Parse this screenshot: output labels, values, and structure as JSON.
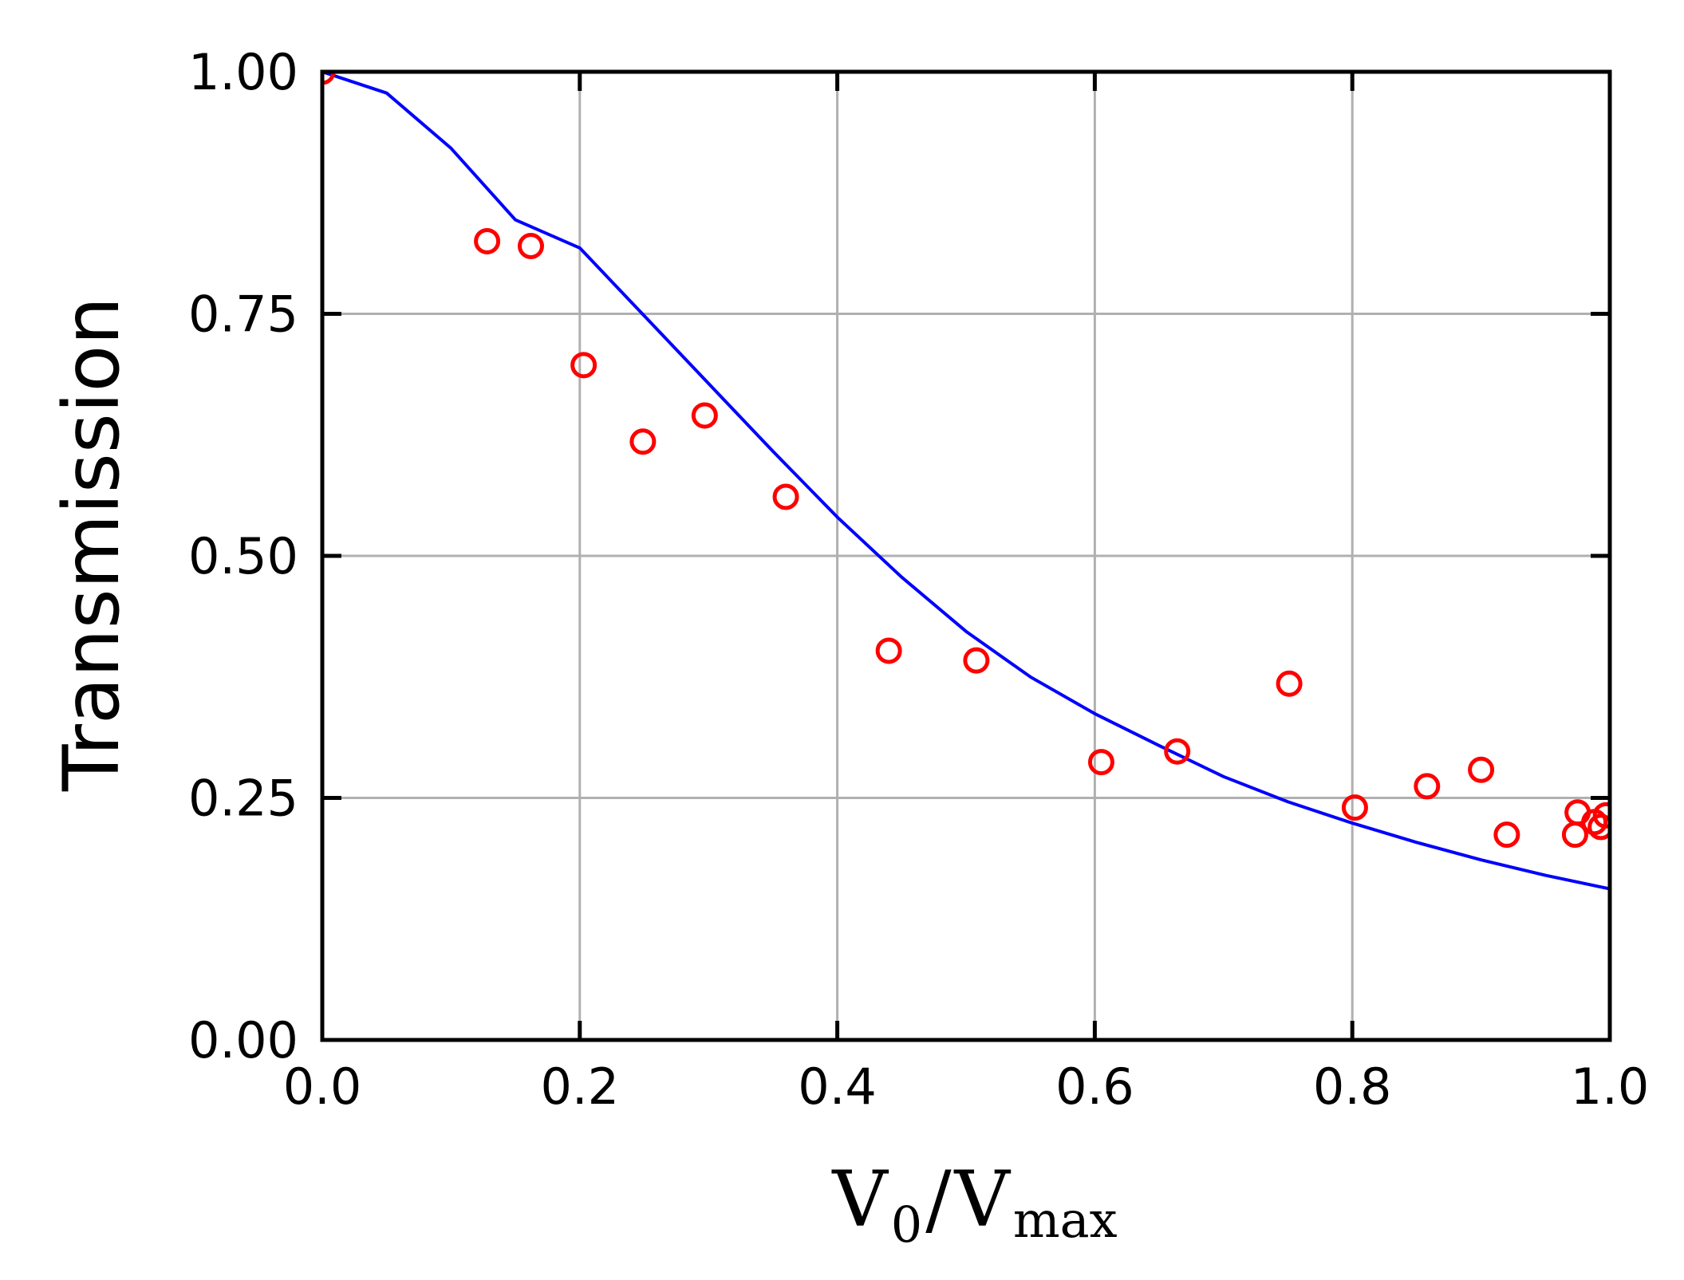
{
  "chart_data": {
    "type": "scatter",
    "title": "",
    "xlabel": {
      "main": "V",
      "sub0": "0",
      "slash": "/",
      "main2": "V",
      "sub1": "max"
    },
    "ylabel": "Transmission",
    "xlim": [
      0.0,
      1.0
    ],
    "ylim": [
      0.0,
      1.0
    ],
    "grid": true,
    "xticks": [
      0.0,
      0.2,
      0.4,
      0.6,
      0.8,
      1.0
    ],
    "xtick_labels": [
      "0.0",
      "0.2",
      "0.4",
      "0.6",
      "0.8",
      "1.0"
    ],
    "yticks": [
      0.0,
      0.25,
      0.5,
      0.75,
      1.0
    ],
    "ytick_labels": [
      "0.00",
      "0.25",
      "0.50",
      "0.75",
      "1.00"
    ],
    "colors": {
      "points": "#ff0000",
      "curve": "#0000ff",
      "grid": "#b0b0b0",
      "axes": "#000000"
    },
    "series": [
      {
        "kind": "scatter",
        "marker": "open-circle",
        "points": [
          [
            0.0,
            1.0
          ],
          [
            0.128,
            0.825
          ],
          [
            0.162,
            0.82
          ],
          [
            0.203,
            0.697
          ],
          [
            0.249,
            0.618
          ],
          [
            0.297,
            0.645
          ],
          [
            0.36,
            0.561
          ],
          [
            0.44,
            0.402
          ],
          [
            0.508,
            0.392
          ],
          [
            0.605,
            0.287
          ],
          [
            0.664,
            0.298
          ],
          [
            0.751,
            0.368
          ],
          [
            0.802,
            0.24
          ],
          [
            0.858,
            0.262
          ],
          [
            0.9,
            0.279
          ],
          [
            0.92,
            0.212
          ],
          [
            0.973,
            0.212
          ],
          [
            0.975,
            0.235
          ],
          [
            0.988,
            0.225
          ],
          [
            0.993,
            0.22
          ],
          [
            0.997,
            0.232
          ]
        ]
      },
      {
        "kind": "line",
        "points": [
          [
            0.0,
            1.0
          ],
          [
            0.05,
            0.978
          ],
          [
            0.1,
            0.921
          ],
          [
            0.15,
            0.847
          ],
          [
            0.2,
            0.818
          ],
          [
            0.25,
            0.748
          ],
          [
            0.3,
            0.678
          ],
          [
            0.35,
            0.608
          ],
          [
            0.4,
            0.54
          ],
          [
            0.45,
            0.478
          ],
          [
            0.5,
            0.422
          ],
          [
            0.55,
            0.375
          ],
          [
            0.6,
            0.337
          ],
          [
            0.65,
            0.304
          ],
          [
            0.7,
            0.272
          ],
          [
            0.75,
            0.246
          ],
          [
            0.8,
            0.224
          ],
          [
            0.85,
            0.204
          ],
          [
            0.9,
            0.186
          ],
          [
            0.95,
            0.17
          ],
          [
            1.0,
            0.156
          ]
        ]
      }
    ]
  }
}
